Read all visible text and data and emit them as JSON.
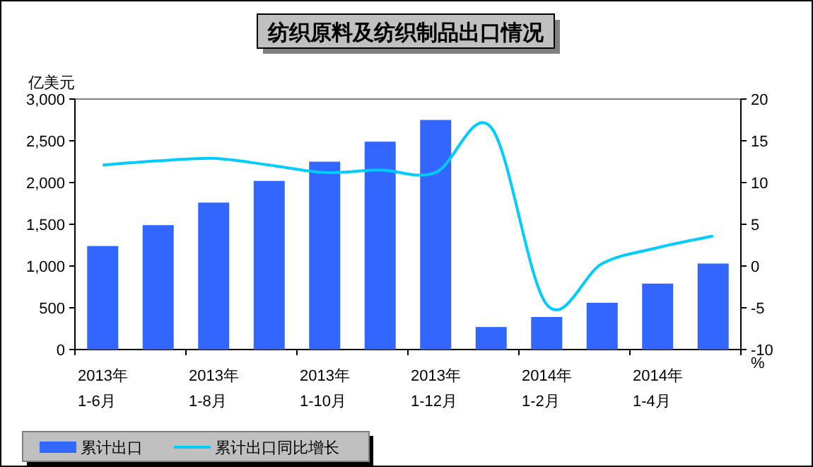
{
  "chart_data": {
    "type": "bar",
    "title": "纺织原料及纺织制品出口情况",
    "ylabel": "亿美元",
    "y2label": "%",
    "categories": [
      "2013年\n1-6月",
      null,
      "2013年\n1-8月",
      null,
      "2013年\n1-10月",
      null,
      "2013年\n1-12月",
      null,
      "2014年\n1-2月",
      null,
      "2014年\n1-4月",
      null
    ],
    "series": [
      {
        "name": "累计出口",
        "color": "#3366ff",
        "values": [
          1240,
          1490,
          1760,
          2020,
          2250,
          2490,
          2750,
          270,
          390,
          560,
          790,
          1030
        ]
      },
      {
        "name": "累计出口同比增长",
        "type": "line",
        "axis": "y2",
        "color": "#00ccff",
        "values": [
          12.1,
          12.6,
          12.9,
          12.1,
          11.2,
          11.5,
          11.2,
          16.6,
          -4.6,
          0.3,
          2.2,
          3.6
        ]
      }
    ],
    "ylim": [
      0,
      3000
    ],
    "yticks": [
      {
        "value": 0,
        "label": "0"
      },
      {
        "value": 500,
        "label": "500"
      },
      {
        "value": 1000,
        "label": "1,000"
      },
      {
        "value": 1500,
        "label": "1,500"
      },
      {
        "value": 2000,
        "label": "2,000"
      },
      {
        "value": 2500,
        "label": "2,500"
      },
      {
        "value": 3000,
        "label": "3,000"
      }
    ],
    "y2lim": [
      -10,
      20
    ],
    "y2ticks": [
      -10,
      -5,
      0,
      5,
      10,
      15,
      20
    ],
    "grid": false,
    "legend": "bottom left",
    "marker": "none",
    "line_style": "solid"
  }
}
